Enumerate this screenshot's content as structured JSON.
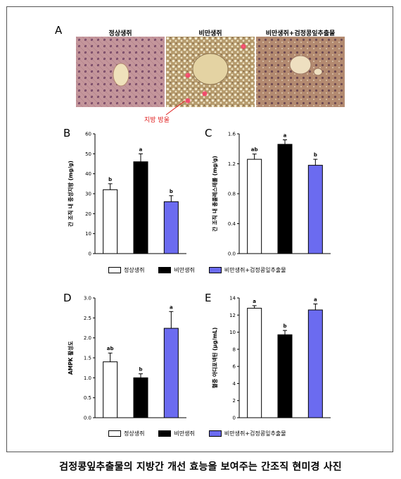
{
  "figure": {
    "panel_letters": [
      "A",
      "B",
      "C",
      "D",
      "E"
    ],
    "micro_labels": [
      "정상생쥐",
      "비만생쥐",
      "비만생쥐+검정콩잎추출물"
    ],
    "fat_label": "지방 방울",
    "legend": [
      "정상생쥐",
      "비만생쥐",
      "비만생쥐+검정콩잎추출물"
    ],
    "caption": "검정콩잎추출물의 지방간 개선 효능을 보여주는 간조직 현미경 사진"
  },
  "colors": {
    "normal": "#ffffff",
    "obese": "#000000",
    "extract": "#6b6bf0"
  },
  "chart_data": [
    {
      "type": "bar",
      "panel": "B",
      "categories": [
        "정상생쥐",
        "비만생쥐",
        "비만생쥐+검정콩잎추출물"
      ],
      "values": [
        32,
        46,
        26
      ],
      "errors": [
        3,
        4,
        3
      ],
      "sig": [
        "b",
        "a",
        "b"
      ],
      "ylabel": "간 조직 내 중성지방 (mg/g)",
      "ylim": [
        0,
        60
      ],
      "yticks": [
        "0",
        "10",
        "20",
        "30",
        "40",
        "50",
        "60"
      ]
    },
    {
      "type": "bar",
      "panel": "C",
      "categories": [
        "정상생쥐",
        "비만생쥐",
        "비만생쥐+검정콩잎추출물"
      ],
      "values": [
        1.26,
        1.46,
        1.18
      ],
      "errors": [
        0.07,
        0.06,
        0.08
      ],
      "sig": [
        "ab",
        "a",
        "b"
      ],
      "ylabel": "간 조직 내 총콜레스테롤 (mg/g)",
      "ylim": [
        0,
        1.6
      ],
      "yticks": [
        "0.0",
        "0.4",
        "0.8",
        "1.2",
        "1.6"
      ]
    },
    {
      "type": "bar",
      "panel": "D",
      "categories": [
        "정상생쥐",
        "비만생쥐",
        "비만생쥐+검정콩잎추출물"
      ],
      "values": [
        1.4,
        1.0,
        2.24
      ],
      "errors": [
        0.22,
        0.1,
        0.42
      ],
      "sig": [
        "ab",
        "b",
        "a"
      ],
      "ylabel": "AMPK 활성도",
      "ylim": [
        0,
        3.0
      ],
      "yticks": [
        "0.0",
        "0.5",
        "1.0",
        "1.5",
        "2.0",
        "2.5",
        "3.0"
      ]
    },
    {
      "type": "bar",
      "panel": "E",
      "categories": [
        "정상생쥐",
        "비만생쥐",
        "비만생쥐+검정콩잎추출물"
      ],
      "values": [
        12.8,
        9.7,
        12.6
      ],
      "errors": [
        0.3,
        0.5,
        0.7
      ],
      "sig": [
        "a",
        "b",
        "a"
      ],
      "ylabel": "혈중 아디포넥틴 (μg/mL)",
      "ylim": [
        0,
        14
      ],
      "yticks": [
        "0",
        "2",
        "4",
        "6",
        "8",
        "10",
        "12",
        "14"
      ]
    }
  ]
}
